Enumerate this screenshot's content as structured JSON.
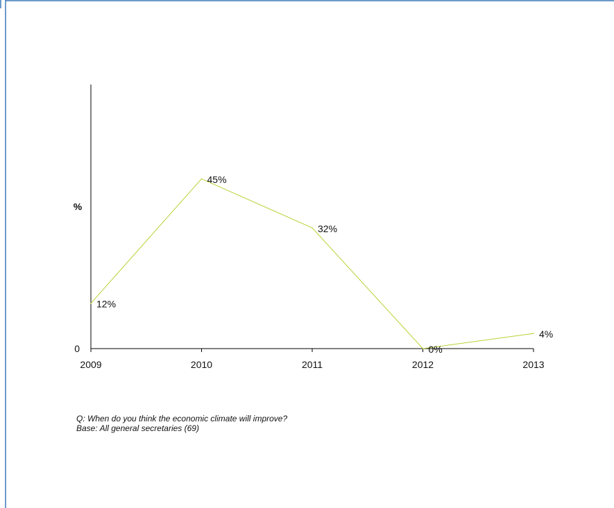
{
  "chart_data": {
    "type": "line",
    "categories": [
      "2009",
      "2010",
      "2011",
      "2012",
      "2013"
    ],
    "values": [
      12,
      45,
      32,
      0,
      4
    ],
    "data_labels": [
      "12%",
      "45%",
      "32%",
      "0%",
      "4%"
    ],
    "ylabel": "%",
    "y_tick_labels": [
      "0"
    ],
    "ylim": [
      0,
      70
    ],
    "grid": false,
    "legend": "none",
    "line_color": "#b5d334",
    "axis_color": "#000000",
    "border_color": "#3a79b8"
  },
  "notes": {
    "question": "Q: When do you think the economic climate will improve?",
    "base": "Base: All general secretaries (69)"
  }
}
